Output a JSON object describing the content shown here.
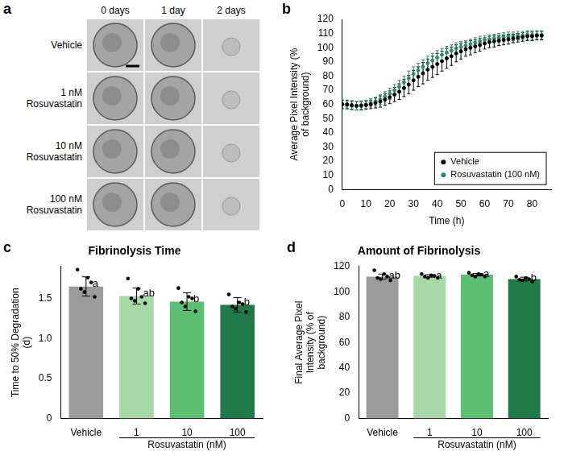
{
  "chart_data": [
    {
      "type": "images",
      "panel": "a",
      "columns": [
        "0 days",
        "1 day",
        "2 days"
      ],
      "rows": [
        "Vehicle",
        "1 nM Rosuvastatin",
        "10 nM Rosuvastatin",
        "100 nM Rosuvastatin"
      ]
    },
    {
      "type": "scatter",
      "panel": "b",
      "x_label": "Time (h)",
      "y_label": "Average Pixel Intensity (% of background)",
      "x": [
        0,
        2,
        4,
        6,
        8,
        10,
        12,
        14,
        16,
        18,
        20,
        22,
        24,
        26,
        28,
        30,
        32,
        34,
        36,
        38,
        40,
        42,
        44,
        46,
        48,
        50,
        52,
        54,
        56,
        58,
        60,
        62,
        64,
        66,
        68,
        70,
        72,
        74,
        76,
        78,
        80,
        82,
        84
      ],
      "series": [
        {
          "name": "Vehicle",
          "color": "#000000",
          "marker": "circle",
          "values": [
            60,
            60,
            59.5,
            59,
            59,
            59.5,
            60,
            61,
            62,
            63.5,
            65,
            67,
            69,
            71.5,
            74,
            77,
            79.5,
            82,
            84.5,
            86.5,
            88.5,
            90.5,
            92.5,
            94,
            96,
            97.5,
            99,
            100,
            101,
            102,
            103,
            104,
            104.5,
            105,
            105.5,
            106,
            106.5,
            107,
            107.5,
            108,
            108,
            108.5,
            108.5
          ],
          "errors": [
            3,
            3,
            3,
            3,
            3,
            3,
            3,
            3.5,
            4,
            4,
            4.5,
            5,
            5.5,
            6,
            6.5,
            7,
            7,
            7.5,
            7.5,
            7.5,
            7.5,
            7,
            7,
            6.5,
            6,
            5.5,
            5,
            5,
            4.5,
            4.5,
            4,
            4,
            4,
            3.5,
            3.5,
            3.5,
            3,
            3,
            3,
            3,
            3,
            3,
            3
          ]
        },
        {
          "name": "Rosuvastatin (100 nM)",
          "color": "#2e8b6a",
          "marker": "circle",
          "values": [
            60,
            59.5,
            59,
            59,
            59.5,
            60,
            61,
            62,
            63.5,
            65.5,
            67.5,
            70,
            72.5,
            75.5,
            78.5,
            81.5,
            84,
            86.5,
            89,
            91,
            93,
            95,
            96.5,
            98,
            99.5,
            100.5,
            101.5,
            102.5,
            103.5,
            104.5,
            105.5,
            106,
            106.5,
            107,
            107.5,
            108,
            108,
            108.5,
            108.5,
            109,
            109,
            109,
            109
          ],
          "errors": [
            3,
            3,
            3,
            3,
            3,
            3,
            3,
            3,
            3.5,
            3.5,
            4,
            4,
            4.5,
            4.5,
            5,
            5,
            5,
            5,
            5,
            5,
            5,
            4.5,
            4.5,
            4,
            4,
            4,
            3.5,
            3.5,
            3.5,
            3.5,
            3,
            3,
            3,
            3,
            3,
            3,
            3,
            3,
            3,
            3,
            3,
            3,
            3
          ]
        }
      ],
      "xlim": [
        0,
        88
      ],
      "xticks": [
        0,
        10,
        20,
        30,
        40,
        50,
        60,
        70,
        80
      ],
      "ylim": [
        0,
        120
      ],
      "yticks": [
        0,
        10,
        20,
        30,
        40,
        50,
        60,
        70,
        80,
        90,
        100,
        110,
        120
      ],
      "grid": false,
      "legend": "lower right"
    },
    {
      "type": "bar",
      "panel": "c",
      "title": "Fibrinolysis Time",
      "y_label": "Time to 50% Degradation (d)",
      "categories": [
        "Vehicle",
        "1",
        "10",
        "100"
      ],
      "values": [
        1.65,
        1.53,
        1.46,
        1.42
      ],
      "errors": [
        0.12,
        0.1,
        0.11,
        0.09
      ],
      "points": [
        [
          1.86,
          1.76,
          1.7,
          1.62,
          1.58,
          1.52
        ],
        [
          1.75,
          1.62,
          1.52,
          1.5,
          1.47,
          1.44
        ],
        [
          1.63,
          1.52,
          1.5,
          1.45,
          1.4,
          1.34
        ],
        [
          1.55,
          1.45,
          1.43,
          1.4,
          1.37,
          1.33
        ]
      ],
      "annotations": [
        "a",
        "ab",
        "b",
        "b"
      ],
      "colors": [
        "#9b9b9b",
        "#a6d9a6",
        "#5cbf72",
        "#1f7a47"
      ],
      "groups": [
        {
          "label": "Rosuvastatin (nM)",
          "categories": [
            "1",
            "10",
            "100"
          ]
        }
      ],
      "ylim": [
        0,
        1.9
      ],
      "yticks": [
        0,
        0.5,
        {
          "value": 1,
          "label": "1.0"
        },
        1.5
      ],
      "grid": false
    },
    {
      "type": "bar",
      "panel": "d",
      "title": "Amount of Fibrinolysis",
      "y_label": "Final Average Pixel Intensity (% of background)",
      "categories": [
        "Vehicle",
        "1",
        "10",
        "100"
      ],
      "values": [
        112,
        112.5,
        113.5,
        110
      ],
      "errors": [
        2,
        1,
        1,
        1.5
      ],
      "points": [
        [
          117,
          114,
          112,
          111,
          110,
          109
        ],
        [
          114,
          113,
          112.5,
          112,
          111,
          111
        ],
        [
          115,
          114,
          113.5,
          113,
          112,
          112
        ],
        [
          112,
          111,
          110,
          109.5,
          109,
          108
        ]
      ],
      "annotations": [
        "ab",
        "a",
        "a",
        "b"
      ],
      "colors": [
        "#9b9b9b",
        "#a6d9a6",
        "#5cbf72",
        "#1f7a47"
      ],
      "groups": [
        {
          "label": "Rosuvastatin (nM)",
          "categories": [
            "1",
            "10",
            "100"
          ]
        }
      ],
      "ylim": [
        0,
        120
      ],
      "yticks": [
        0,
        20,
        40,
        60,
        80,
        100,
        120
      ],
      "grid": false
    }
  ]
}
